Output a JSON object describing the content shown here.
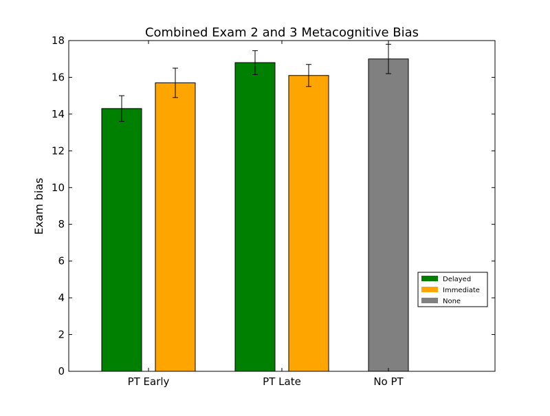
{
  "chart_data": {
    "type": "bar",
    "title": "Combined Exam 2 and 3 Metacognitive Bias",
    "xlabel": "",
    "ylabel": "Exam bias",
    "ylim": [
      0,
      18
    ],
    "yticks": [
      0,
      2,
      4,
      6,
      8,
      10,
      12,
      14,
      16,
      18
    ],
    "categories": [
      "PT Early",
      "PT Late",
      "No PT"
    ],
    "series": [
      {
        "name": "Delayed",
        "color": "#008000",
        "values": [
          14.3,
          16.8,
          null
        ],
        "errors": [
          0.7,
          0.65,
          null
        ]
      },
      {
        "name": "Immediate",
        "color": "#FFA500",
        "values": [
          15.7,
          16.1,
          null
        ],
        "errors": [
          0.8,
          0.6,
          null
        ]
      },
      {
        "name": "None",
        "color": "#808080",
        "values": [
          null,
          null,
          17.0
        ],
        "errors": [
          null,
          null,
          0.8
        ]
      }
    ],
    "legend_position": "lower-right",
    "grid": false
  }
}
